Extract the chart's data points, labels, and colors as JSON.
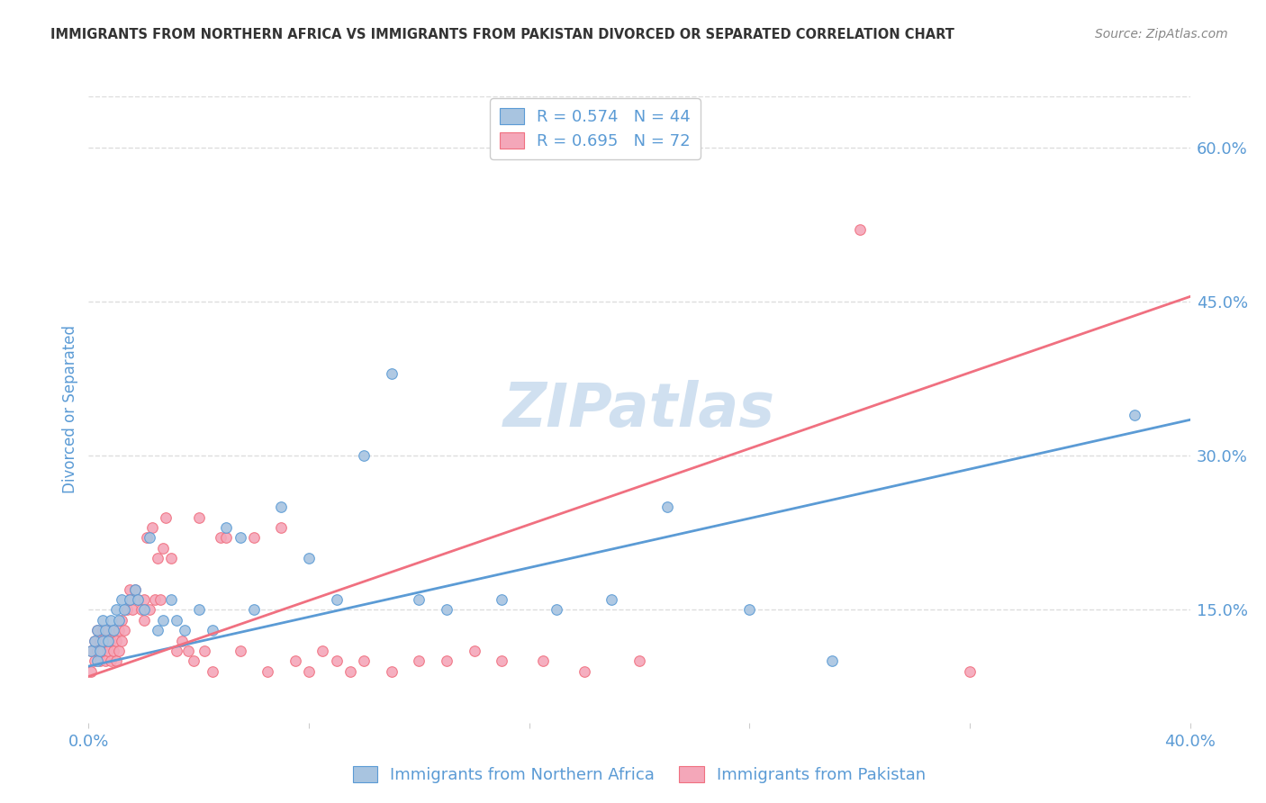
{
  "title": "IMMIGRANTS FROM NORTHERN AFRICA VS IMMIGRANTS FROM PAKISTAN DIVORCED OR SEPARATED CORRELATION CHART",
  "source": "Source: ZipAtlas.com",
  "ylabel": "Divorced or Separated",
  "xlim": [
    0.0,
    0.4
  ],
  "ylim": [
    0.04,
    0.65
  ],
  "ytick_labels": [
    "15.0%",
    "30.0%",
    "45.0%",
    "60.0%"
  ],
  "ytick_values": [
    0.15,
    0.3,
    0.45,
    0.6
  ],
  "blue_color": "#a8c4e0",
  "pink_color": "#f4a7b9",
  "blue_line_color": "#5b9bd5",
  "pink_line_color": "#f07080",
  "title_color": "#333333",
  "axis_label_color": "#5b9bd5",
  "watermark_color": "#d0e0f0",
  "R_blue": 0.574,
  "N_blue": 44,
  "R_pink": 0.695,
  "N_pink": 72,
  "blue_scatter_x": [
    0.001,
    0.002,
    0.003,
    0.003,
    0.004,
    0.005,
    0.005,
    0.006,
    0.007,
    0.008,
    0.009,
    0.01,
    0.011,
    0.012,
    0.013,
    0.015,
    0.017,
    0.018,
    0.02,
    0.022,
    0.025,
    0.027,
    0.03,
    0.032,
    0.035,
    0.04,
    0.045,
    0.05,
    0.055,
    0.06,
    0.07,
    0.08,
    0.09,
    0.1,
    0.11,
    0.12,
    0.13,
    0.15,
    0.17,
    0.19,
    0.21,
    0.24,
    0.27,
    0.38
  ],
  "blue_scatter_y": [
    0.11,
    0.12,
    0.1,
    0.13,
    0.11,
    0.12,
    0.14,
    0.13,
    0.12,
    0.14,
    0.13,
    0.15,
    0.14,
    0.16,
    0.15,
    0.16,
    0.17,
    0.16,
    0.15,
    0.22,
    0.13,
    0.14,
    0.16,
    0.14,
    0.13,
    0.15,
    0.13,
    0.23,
    0.22,
    0.15,
    0.25,
    0.2,
    0.16,
    0.3,
    0.38,
    0.16,
    0.15,
    0.16,
    0.15,
    0.16,
    0.25,
    0.15,
    0.1,
    0.34
  ],
  "pink_scatter_x": [
    0.001,
    0.001,
    0.002,
    0.002,
    0.003,
    0.003,
    0.004,
    0.004,
    0.005,
    0.005,
    0.006,
    0.006,
    0.007,
    0.007,
    0.008,
    0.008,
    0.009,
    0.009,
    0.01,
    0.01,
    0.011,
    0.011,
    0.012,
    0.012,
    0.013,
    0.014,
    0.015,
    0.015,
    0.016,
    0.017,
    0.018,
    0.019,
    0.02,
    0.02,
    0.021,
    0.022,
    0.023,
    0.024,
    0.025,
    0.026,
    0.027,
    0.028,
    0.03,
    0.032,
    0.034,
    0.036,
    0.038,
    0.04,
    0.042,
    0.045,
    0.048,
    0.05,
    0.055,
    0.06,
    0.065,
    0.07,
    0.075,
    0.08,
    0.085,
    0.09,
    0.095,
    0.1,
    0.11,
    0.12,
    0.13,
    0.14,
    0.15,
    0.165,
    0.18,
    0.2,
    0.28,
    0.32
  ],
  "pink_scatter_y": [
    0.09,
    0.11,
    0.1,
    0.12,
    0.11,
    0.13,
    0.1,
    0.12,
    0.11,
    0.13,
    0.1,
    0.12,
    0.11,
    0.13,
    0.1,
    0.12,
    0.11,
    0.13,
    0.1,
    0.12,
    0.11,
    0.13,
    0.12,
    0.14,
    0.13,
    0.15,
    0.16,
    0.17,
    0.15,
    0.17,
    0.16,
    0.15,
    0.14,
    0.16,
    0.22,
    0.15,
    0.23,
    0.16,
    0.2,
    0.16,
    0.21,
    0.24,
    0.2,
    0.11,
    0.12,
    0.11,
    0.1,
    0.24,
    0.11,
    0.09,
    0.22,
    0.22,
    0.11,
    0.22,
    0.09,
    0.23,
    0.1,
    0.09,
    0.11,
    0.1,
    0.09,
    0.1,
    0.09,
    0.1,
    0.1,
    0.11,
    0.1,
    0.1,
    0.09,
    0.1,
    0.52,
    0.09
  ],
  "blue_trendline_x": [
    0.0,
    0.4
  ],
  "blue_trendline_y": [
    0.095,
    0.335
  ],
  "pink_trendline_x": [
    0.0,
    0.4
  ],
  "pink_trendline_y": [
    0.085,
    0.455
  ],
  "background_color": "#ffffff",
  "grid_color": "#dddddd",
  "legend_label_blue": "Immigrants from Northern Africa",
  "legend_label_pink": "Immigrants from Pakistan"
}
